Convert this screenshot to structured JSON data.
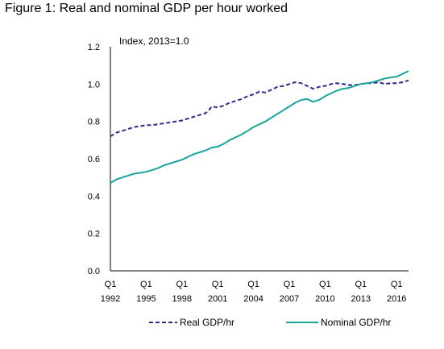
{
  "figure_title": "Figure 1:  Real and nominal GDP per hour worked",
  "chart_data": {
    "type": "line",
    "title": "Figure 1:  Real and nominal GDP per hour worked",
    "annotation": "Index, 2013=1.0",
    "ylim": [
      0,
      1.2
    ],
    "y_ticks": [
      "0.0",
      "0.2",
      "0.4",
      "0.6",
      "0.8",
      "1.0",
      "1.2"
    ],
    "x_ticks": [
      {
        "q": "Q1",
        "year": "1992",
        "x": 1992
      },
      {
        "q": "Q1",
        "year": "1995",
        "x": 1995
      },
      {
        "q": "Q1",
        "year": "1998",
        "x": 1998
      },
      {
        "q": "Q1",
        "year": "2001",
        "x": 2001
      },
      {
        "q": "Q1",
        "year": "2004",
        "x": 2004
      },
      {
        "q": "Q1",
        "year": "2007",
        "x": 2007
      },
      {
        "q": "Q1",
        "year": "2010",
        "x": 2010
      },
      {
        "q": "Q1",
        "year": "2013",
        "x": 2013
      },
      {
        "q": "Q1",
        "year": "2016",
        "x": 2016
      }
    ],
    "xlim": [
      1992,
      2017
    ],
    "grid": false,
    "legend_position": "bottom",
    "series": [
      {
        "name": "Real GDP/hr",
        "style": "dashed",
        "color": "#2e2a8c",
        "points": [
          [
            1992.0,
            0.72
          ],
          [
            1992.5,
            0.74
          ],
          [
            1993.0,
            0.75
          ],
          [
            1993.5,
            0.76
          ],
          [
            1994.0,
            0.77
          ],
          [
            1994.5,
            0.775
          ],
          [
            1995.0,
            0.78
          ],
          [
            1995.5,
            0.78
          ],
          [
            1996.0,
            0.785
          ],
          [
            1996.5,
            0.79
          ],
          [
            1997.0,
            0.795
          ],
          [
            1997.5,
            0.8
          ],
          [
            1998.0,
            0.805
          ],
          [
            1998.5,
            0.815
          ],
          [
            1999.0,
            0.825
          ],
          [
            1999.5,
            0.835
          ],
          [
            2000.0,
            0.845
          ],
          [
            2000.25,
            0.86
          ],
          [
            2000.5,
            0.88
          ],
          [
            2001.0,
            0.875
          ],
          [
            2001.5,
            0.885
          ],
          [
            2002.0,
            0.9
          ],
          [
            2002.5,
            0.91
          ],
          [
            2003.0,
            0.92
          ],
          [
            2003.5,
            0.935
          ],
          [
            2004.0,
            0.945
          ],
          [
            2004.5,
            0.96
          ],
          [
            2005.0,
            0.955
          ],
          [
            2005.5,
            0.97
          ],
          [
            2006.0,
            0.985
          ],
          [
            2006.5,
            0.99
          ],
          [
            2007.0,
            1.0
          ],
          [
            2007.5,
            1.01
          ],
          [
            2008.0,
            1.005
          ],
          [
            2008.5,
            0.99
          ],
          [
            2009.0,
            0.975
          ],
          [
            2009.5,
            0.985
          ],
          [
            2010.0,
            0.99
          ],
          [
            2010.5,
            1.0
          ],
          [
            2011.0,
            1.005
          ],
          [
            2011.5,
            1.0
          ],
          [
            2012.0,
            0.995
          ],
          [
            2012.5,
            0.995
          ],
          [
            2013.0,
            1.0
          ],
          [
            2013.5,
            1.005
          ],
          [
            2014.0,
            1.005
          ],
          [
            2014.5,
            1.01
          ],
          [
            2015.0,
            1.0
          ],
          [
            2015.5,
            1.005
          ],
          [
            2016.0,
            1.005
          ],
          [
            2016.5,
            1.01
          ],
          [
            2017.0,
            1.02
          ]
        ]
      },
      {
        "name": "Nominal GDP/hr",
        "style": "solid",
        "color": "#1aa39a",
        "points": [
          [
            1992.0,
            0.47
          ],
          [
            1992.5,
            0.49
          ],
          [
            1993.0,
            0.5
          ],
          [
            1993.5,
            0.51
          ],
          [
            1994.0,
            0.52
          ],
          [
            1994.5,
            0.525
          ],
          [
            1995.0,
            0.53
          ],
          [
            1995.5,
            0.54
          ],
          [
            1996.0,
            0.55
          ],
          [
            1996.5,
            0.565
          ],
          [
            1997.0,
            0.575
          ],
          [
            1997.5,
            0.585
          ],
          [
            1998.0,
            0.595
          ],
          [
            1998.5,
            0.61
          ],
          [
            1999.0,
            0.625
          ],
          [
            1999.5,
            0.635
          ],
          [
            2000.0,
            0.645
          ],
          [
            2000.5,
            0.66
          ],
          [
            2001.0,
            0.665
          ],
          [
            2001.5,
            0.68
          ],
          [
            2002.0,
            0.7
          ],
          [
            2002.5,
            0.715
          ],
          [
            2003.0,
            0.73
          ],
          [
            2003.5,
            0.75
          ],
          [
            2004.0,
            0.77
          ],
          [
            2004.5,
            0.785
          ],
          [
            2005.0,
            0.8
          ],
          [
            2005.5,
            0.82
          ],
          [
            2006.0,
            0.84
          ],
          [
            2006.5,
            0.86
          ],
          [
            2007.0,
            0.88
          ],
          [
            2007.5,
            0.9
          ],
          [
            2008.0,
            0.915
          ],
          [
            2008.5,
            0.92
          ],
          [
            2009.0,
            0.905
          ],
          [
            2009.5,
            0.915
          ],
          [
            2010.0,
            0.935
          ],
          [
            2010.5,
            0.95
          ],
          [
            2011.0,
            0.965
          ],
          [
            2011.5,
            0.975
          ],
          [
            2012.0,
            0.98
          ],
          [
            2012.5,
            0.99
          ],
          [
            2013.0,
            1.0
          ],
          [
            2013.5,
            1.005
          ],
          [
            2014.0,
            1.01
          ],
          [
            2014.5,
            1.02
          ],
          [
            2015.0,
            1.03
          ],
          [
            2015.5,
            1.035
          ],
          [
            2016.0,
            1.04
          ],
          [
            2016.5,
            1.055
          ],
          [
            2017.0,
            1.07
          ]
        ]
      }
    ]
  }
}
